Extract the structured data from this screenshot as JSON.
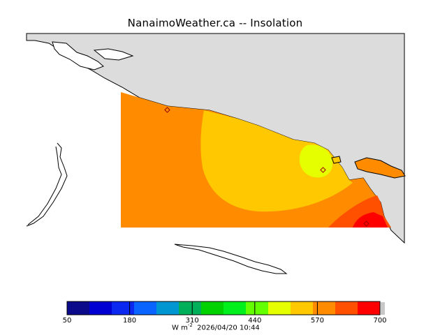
{
  "title": "NanaimoWeather.ca -- Insolation",
  "legend": {
    "colors": [
      "#0a0a8a",
      "#0000d2",
      "#0a28f0",
      "#0a64ff",
      "#0096d2",
      "#00af5a",
      "#00d200",
      "#00f01e",
      "#64ff00",
      "#e6ff00",
      "#ffc800",
      "#ff8c00",
      "#ff5000",
      "#ff0000"
    ],
    "tick_labels": [
      "50",
      "180",
      "310",
      "440",
      "570",
      "700"
    ],
    "unit_text": "W m",
    "unit_exponent": "-2",
    "timestamp": "2026/04/20 10:44"
  },
  "map": {
    "land_color": "#dcdcdc",
    "regions": [
      {
        "name": "orange",
        "color": "#ff8c00"
      },
      {
        "name": "gold",
        "color": "#ffc800"
      },
      {
        "name": "yellow",
        "color": "#e6ff00"
      },
      {
        "name": "red-orange",
        "color": "#ff5000"
      },
      {
        "name": "red",
        "color": "#ff0000"
      }
    ],
    "stations": 3
  }
}
